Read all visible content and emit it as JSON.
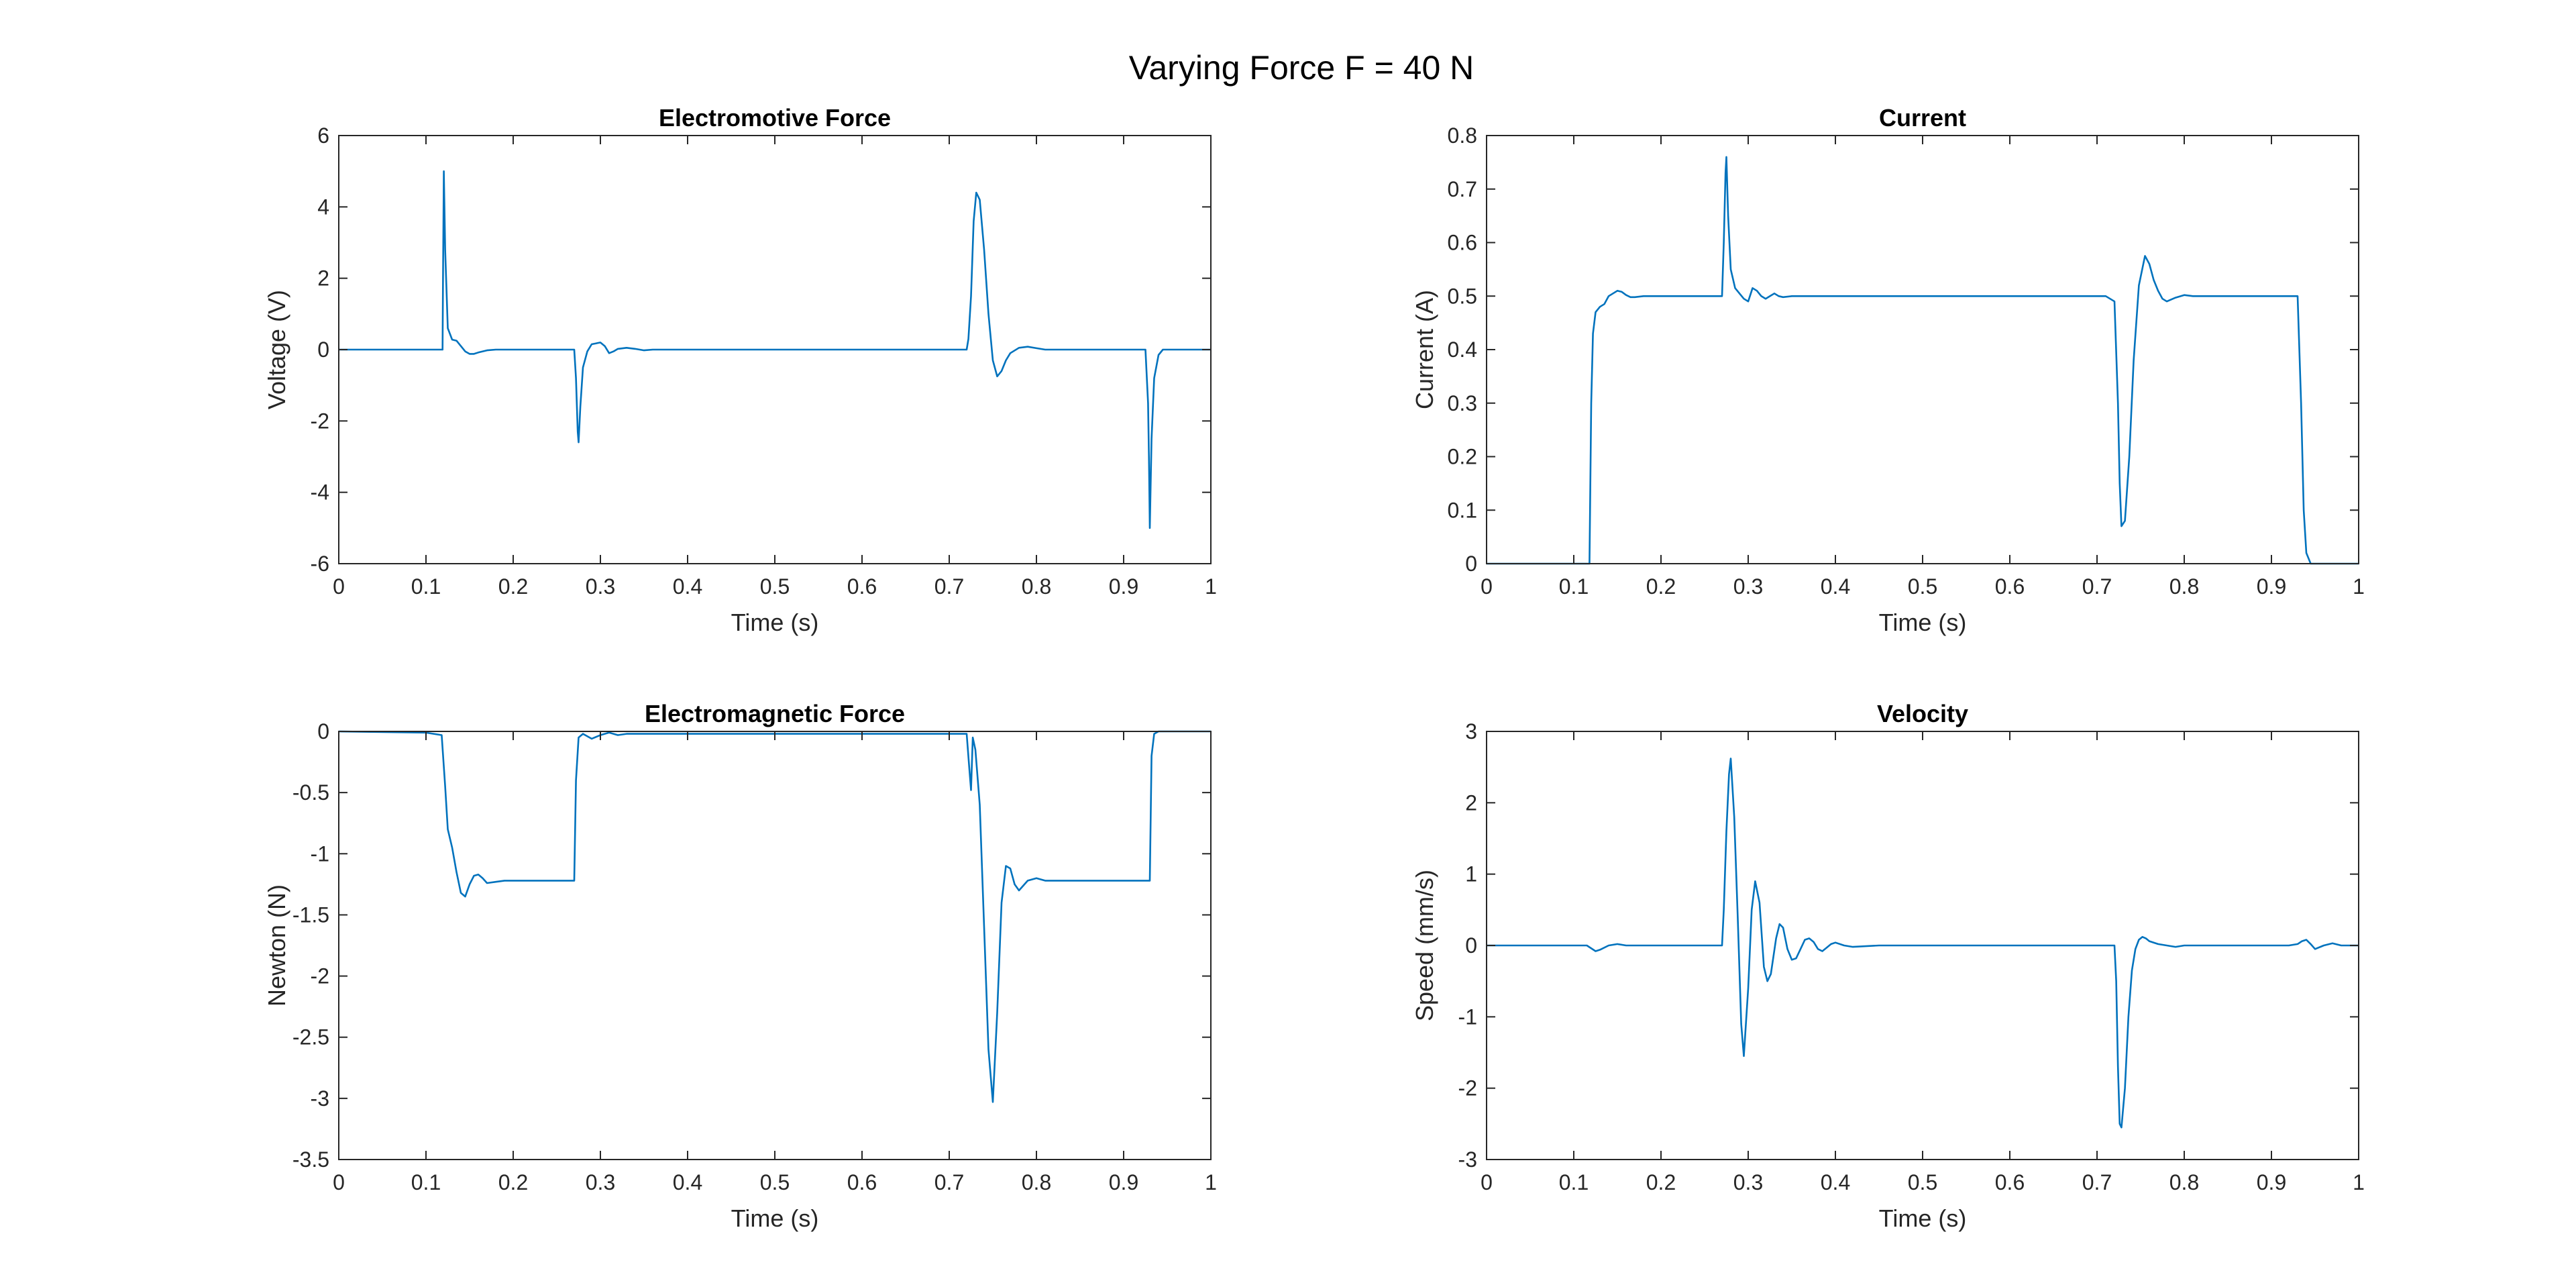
{
  "figure": {
    "title": "Varying Force F = 40 N",
    "series_color": "#0072BD"
  },
  "chart_data": [
    {
      "type": "line",
      "title": "Electromotive Force",
      "xlabel": "Time (s)",
      "ylabel": "Voltage (V)",
      "xlim": [
        0,
        1
      ],
      "ylim": [
        -6,
        6
      ],
      "xticks": [
        0,
        0.1,
        0.2,
        0.3,
        0.4,
        0.5,
        0.6,
        0.7,
        0.8,
        0.9,
        1
      ],
      "xtick_labels": [
        "0",
        "0.1",
        "0.2",
        "0.3",
        "0.4",
        "0.5",
        "0.6",
        "0.7",
        "0.8",
        "0.9",
        "1"
      ],
      "yticks": [
        -6,
        -4,
        -2,
        0,
        2,
        4,
        6
      ],
      "ytick_labels": [
        "-6",
        "-4",
        "-2",
        "0",
        "2",
        "4",
        "6"
      ],
      "grid": false,
      "series": [
        {
          "x": [
            0,
            0.119,
            0.1195,
            0.1205,
            0.122,
            0.125,
            0.13,
            0.135,
            0.14,
            0.145,
            0.15,
            0.155,
            0.16,
            0.17,
            0.18,
            0.2,
            0.27,
            0.272,
            0.274,
            0.275,
            0.277,
            0.28,
            0.285,
            0.29,
            0.3,
            0.305,
            0.31,
            0.315,
            0.32,
            0.33,
            0.34,
            0.35,
            0.36,
            0.37,
            0.4,
            0.72,
            0.722,
            0.725,
            0.728,
            0.731,
            0.735,
            0.74,
            0.745,
            0.75,
            0.755,
            0.76,
            0.765,
            0.77,
            0.78,
            0.79,
            0.8,
            0.81,
            0.82,
            0.85,
            0.925,
            0.928,
            0.929,
            0.93,
            0.932,
            0.935,
            0.94,
            0.945,
            0.95,
            1.0
          ],
          "y": [
            0,
            0,
            2.0,
            5.0,
            2.8,
            0.6,
            0.28,
            0.25,
            0.1,
            -0.05,
            -0.12,
            -0.12,
            -0.08,
            -0.02,
            0,
            0,
            0,
            -0.8,
            -2.3,
            -2.6,
            -1.6,
            -0.5,
            -0.05,
            0.15,
            0.2,
            0.1,
            -0.1,
            -0.05,
            0.02,
            0.05,
            0.02,
            -0.02,
            0,
            0,
            0,
            0,
            0.3,
            1.5,
            3.6,
            4.4,
            4.2,
            2.8,
            1.0,
            -0.3,
            -0.75,
            -0.6,
            -0.3,
            -0.1,
            0.05,
            0.08,
            0.04,
            0,
            0,
            0,
            0,
            -1.5,
            -3.0,
            -5.0,
            -2.5,
            -0.8,
            -0.15,
            0,
            0,
            0
          ]
        }
      ]
    },
    {
      "type": "line",
      "title": "Current",
      "xlabel": "Time (s)",
      "ylabel": "Current (A)",
      "xlim": [
        0,
        1
      ],
      "ylim": [
        0,
        0.8
      ],
      "xticks": [
        0,
        0.1,
        0.2,
        0.3,
        0.4,
        0.5,
        0.6,
        0.7,
        0.8,
        0.9,
        1
      ],
      "xtick_labels": [
        "0",
        "0.1",
        "0.2",
        "0.3",
        "0.4",
        "0.5",
        "0.6",
        "0.7",
        "0.8",
        "0.9",
        "1"
      ],
      "yticks": [
        0,
        0.1,
        0.2,
        0.3,
        0.4,
        0.5,
        0.6,
        0.7,
        0.8
      ],
      "ytick_labels": [
        "0",
        "0.1",
        "0.2",
        "0.3",
        "0.4",
        "0.5",
        "0.6",
        "0.7",
        "0.8"
      ],
      "grid": false,
      "series": [
        {
          "x": [
            0,
            0.118,
            0.12,
            0.122,
            0.125,
            0.13,
            0.135,
            0.14,
            0.145,
            0.15,
            0.155,
            0.16,
            0.165,
            0.17,
            0.18,
            0.2,
            0.27,
            0.272,
            0.274,
            0.275,
            0.277,
            0.28,
            0.285,
            0.29,
            0.295,
            0.3,
            0.305,
            0.31,
            0.315,
            0.32,
            0.325,
            0.33,
            0.335,
            0.34,
            0.35,
            0.36,
            0.37,
            0.4,
            0.71,
            0.72,
            0.724,
            0.726,
            0.728,
            0.732,
            0.737,
            0.742,
            0.748,
            0.755,
            0.76,
            0.765,
            0.77,
            0.775,
            0.78,
            0.79,
            0.8,
            0.81,
            0.82,
            0.85,
            0.93,
            0.934,
            0.937,
            0.94,
            0.945,
            0.95,
            1.0
          ],
          "y": [
            0,
            0,
            0.3,
            0.43,
            0.47,
            0.48,
            0.485,
            0.5,
            0.505,
            0.51,
            0.508,
            0.502,
            0.498,
            0.498,
            0.5,
            0.5,
            0.5,
            0.6,
            0.73,
            0.76,
            0.65,
            0.55,
            0.515,
            0.505,
            0.495,
            0.49,
            0.515,
            0.51,
            0.5,
            0.495,
            0.5,
            0.505,
            0.5,
            0.498,
            0.5,
            0.5,
            0.5,
            0.5,
            0.5,
            0.49,
            0.3,
            0.15,
            0.07,
            0.08,
            0.2,
            0.38,
            0.52,
            0.575,
            0.56,
            0.53,
            0.51,
            0.495,
            0.49,
            0.497,
            0.502,
            0.5,
            0.5,
            0.5,
            0.5,
            0.3,
            0.1,
            0.02,
            0,
            0,
            0
          ]
        }
      ]
    },
    {
      "type": "line",
      "title": "Electromagnetic Force",
      "xlabel": "Time (s)",
      "ylabel": "Newton (N)",
      "xlim": [
        0,
        1
      ],
      "ylim": [
        -3.5,
        0
      ],
      "xticks": [
        0,
        0.1,
        0.2,
        0.3,
        0.4,
        0.5,
        0.6,
        0.7,
        0.8,
        0.9,
        1
      ],
      "xtick_labels": [
        "0",
        "0.1",
        "0.2",
        "0.3",
        "0.4",
        "0.5",
        "0.6",
        "0.7",
        "0.8",
        "0.9",
        "1"
      ],
      "yticks": [
        -3.5,
        -3,
        -2.5,
        -2,
        -1.5,
        -1,
        -0.5,
        0
      ],
      "ytick_labels": [
        "-3.5",
        "-3",
        "-2.5",
        "-2",
        "-1.5",
        "-1",
        "-0.5",
        "0"
      ],
      "grid": false,
      "series": [
        {
          "x": [
            0,
            0.1,
            0.118,
            0.122,
            0.125,
            0.13,
            0.135,
            0.14,
            0.145,
            0.15,
            0.155,
            0.16,
            0.165,
            0.17,
            0.18,
            0.19,
            0.2,
            0.27,
            0.272,
            0.275,
            0.28,
            0.29,
            0.3,
            0.31,
            0.32,
            0.33,
            0.4,
            0.72,
            0.723,
            0.725,
            0.727,
            0.73,
            0.735,
            0.74,
            0.745,
            0.75,
            0.755,
            0.76,
            0.765,
            0.77,
            0.775,
            0.78,
            0.79,
            0.8,
            0.81,
            0.85,
            0.93,
            0.932,
            0.935,
            0.94,
            1.0
          ],
          "y": [
            0,
            -0.01,
            -0.03,
            -0.45,
            -0.8,
            -0.95,
            -1.15,
            -1.32,
            -1.35,
            -1.25,
            -1.18,
            -1.17,
            -1.2,
            -1.24,
            -1.23,
            -1.22,
            -1.22,
            -1.22,
            -0.4,
            -0.05,
            -0.02,
            -0.06,
            -0.03,
            -0.01,
            -0.03,
            -0.02,
            -0.02,
            -0.02,
            -0.3,
            -0.48,
            -0.05,
            -0.15,
            -0.6,
            -1.6,
            -2.6,
            -3.03,
            -2.3,
            -1.4,
            -1.1,
            -1.12,
            -1.25,
            -1.3,
            -1.22,
            -1.2,
            -1.22,
            -1.22,
            -1.22,
            -0.2,
            -0.02,
            0,
            0
          ]
        }
      ]
    },
    {
      "type": "line",
      "title": "Velocity",
      "xlabel": "Time (s)",
      "ylabel": "Speed (mm/s)",
      "xlim": [
        0,
        1
      ],
      "ylim": [
        -3,
        3
      ],
      "xticks": [
        0,
        0.1,
        0.2,
        0.3,
        0.4,
        0.5,
        0.6,
        0.7,
        0.8,
        0.9,
        1
      ],
      "xtick_labels": [
        "0",
        "0.1",
        "0.2",
        "0.3",
        "0.4",
        "0.5",
        "0.6",
        "0.7",
        "0.8",
        "0.9",
        "1"
      ],
      "yticks": [
        -3,
        -2,
        -1,
        0,
        1,
        2,
        3
      ],
      "ytick_labels": [
        "-3",
        "-2",
        "-1",
        "0",
        "1",
        "2",
        "3"
      ],
      "grid": false,
      "series": [
        {
          "x": [
            0,
            0.115,
            0.125,
            0.13,
            0.14,
            0.15,
            0.16,
            0.17,
            0.27,
            0.272,
            0.275,
            0.278,
            0.28,
            0.284,
            0.288,
            0.292,
            0.295,
            0.3,
            0.304,
            0.308,
            0.313,
            0.318,
            0.322,
            0.326,
            0.332,
            0.336,
            0.34,
            0.345,
            0.35,
            0.355,
            0.36,
            0.365,
            0.37,
            0.375,
            0.38,
            0.385,
            0.39,
            0.395,
            0.4,
            0.41,
            0.42,
            0.45,
            0.72,
            0.722,
            0.724,
            0.726,
            0.728,
            0.732,
            0.736,
            0.74,
            0.744,
            0.748,
            0.752,
            0.756,
            0.76,
            0.77,
            0.78,
            0.79,
            0.8,
            0.92,
            0.93,
            0.935,
            0.94,
            0.945,
            0.95,
            0.96,
            0.97,
            0.98,
            1.0
          ],
          "y": [
            0,
            0,
            -0.08,
            -0.06,
            0,
            0.02,
            0,
            0,
            0,
            0.5,
            1.6,
            2.4,
            2.62,
            1.8,
            0.4,
            -1.1,
            -1.55,
            -0.6,
            0.5,
            0.9,
            0.6,
            -0.3,
            -0.5,
            -0.4,
            0.1,
            0.3,
            0.25,
            -0.05,
            -0.2,
            -0.18,
            -0.05,
            0.08,
            0.1,
            0.05,
            -0.05,
            -0.08,
            -0.03,
            0.02,
            0.04,
            0,
            -0.02,
            0,
            0,
            -0.5,
            -1.7,
            -2.5,
            -2.55,
            -2.0,
            -1.0,
            -0.35,
            -0.05,
            0.08,
            0.12,
            0.1,
            0.06,
            0.02,
            0,
            -0.02,
            0,
            0,
            0.02,
            0.06,
            0.08,
            0.02,
            -0.05,
            0,
            0.03,
            0,
            0
          ]
        }
      ]
    }
  ]
}
